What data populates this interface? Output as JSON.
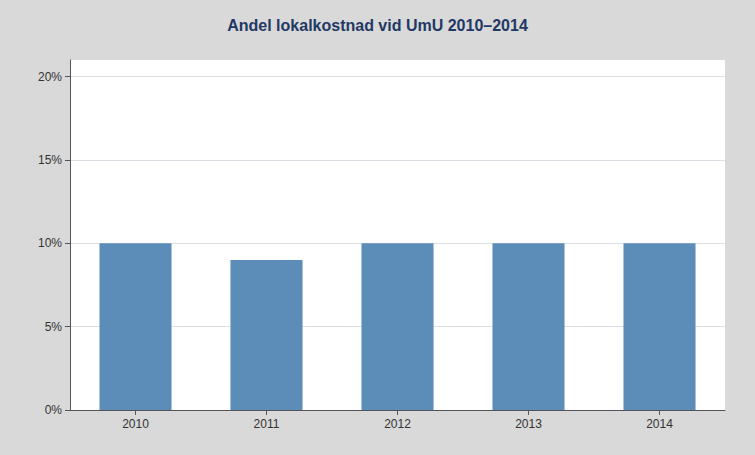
{
  "chart_data": {
    "type": "bar",
    "title": "Andel lokalkostnad vid UmU 2010–2014",
    "categories": [
      "2010",
      "2011",
      "2012",
      "2013",
      "2014"
    ],
    "values": [
      0.1,
      0.09,
      0.1,
      0.1,
      0.1
    ],
    "color": "#5B8DB8",
    "ylim": [
      0,
      0.21
    ],
    "yticks": [
      {
        "value": 0.0,
        "label": "0%"
      },
      {
        "value": 0.05,
        "label": "5%"
      },
      {
        "value": 0.1,
        "label": "10%"
      },
      {
        "value": 0.15,
        "label": "15%"
      },
      {
        "value": 0.2,
        "label": "20%"
      }
    ],
    "grid": true
  }
}
